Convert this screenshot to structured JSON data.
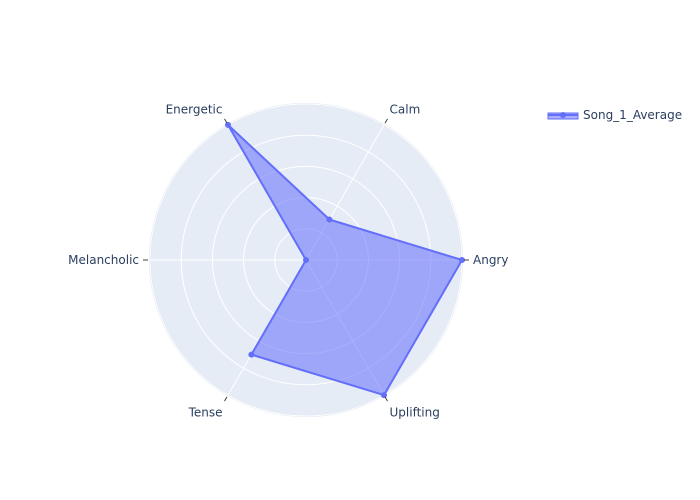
{
  "chart_data": {
    "type": "radar",
    "title": "",
    "categories": [
      "Angry",
      "Calm",
      "Energetic",
      "Melancholic",
      "Tense",
      "Uplifting"
    ],
    "series": [
      {
        "name": "Song_1_Average",
        "values": [
          5,
          1.5,
          5,
          0,
          3.5,
          5
        ],
        "color": "#636efa",
        "fill": "rgba(99,110,250,0.55)"
      }
    ],
    "radial_range": [
      0,
      5
    ],
    "grid": true,
    "legend": "top-right",
    "colors": {
      "polar_bg": "#e5ecf6",
      "grid": "#ffffff",
      "text": "#2a3f5f"
    }
  }
}
